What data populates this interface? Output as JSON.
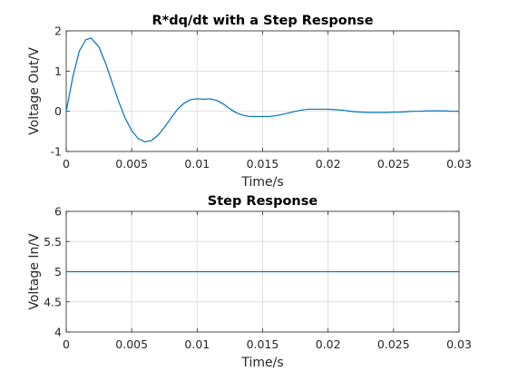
{
  "chart_data": [
    {
      "type": "line",
      "title": "R*dq/dt with a Step Response",
      "xlabel": "Time/s",
      "ylabel": "Voltage Out/V",
      "xlim": [
        0,
        0.03
      ],
      "ylim": [
        -1,
        2
      ],
      "xticks": [
        "0",
        "0.005",
        "0.01",
        "0.015",
        "0.02",
        "0.025",
        "0.03"
      ],
      "yticks": [
        "-1",
        "0",
        "1",
        "2"
      ],
      "grid": true,
      "color": "#0072bd",
      "series": [
        {
          "x": [
            0,
            0.0005,
            0.001,
            0.0015,
            0.0019,
            0.0025,
            0.003,
            0.0035,
            0.004,
            0.0045,
            0.005,
            0.0055,
            0.006,
            0.0065,
            0.007,
            0.0075,
            0.008,
            0.0085,
            0.009,
            0.0095,
            0.01,
            0.0105,
            0.011,
            0.0115,
            0.012,
            0.0125,
            0.013,
            0.0135,
            0.014,
            0.0145,
            0.015,
            0.0155,
            0.016,
            0.0165,
            0.017,
            0.0175,
            0.018,
            0.0185,
            0.019,
            0.0195,
            0.02,
            0.0205,
            0.021,
            0.0215,
            0.022,
            0.0225,
            0.023,
            0.0235,
            0.024,
            0.0245,
            0.025,
            0.0255,
            0.026,
            0.0265,
            0.027,
            0.0275,
            0.028,
            0.0285,
            0.029,
            0.0295,
            0.03
          ],
          "y": [
            0,
            0.85,
            1.5,
            1.78,
            1.82,
            1.6,
            1.2,
            0.72,
            0.25,
            -0.17,
            -0.48,
            -0.68,
            -0.76,
            -0.73,
            -0.6,
            -0.4,
            -0.17,
            0.05,
            0.2,
            0.29,
            0.31,
            0.3,
            0.31,
            0.27,
            0.18,
            0.06,
            -0.04,
            -0.1,
            -0.13,
            -0.13,
            -0.13,
            -0.13,
            -0.11,
            -0.08,
            -0.04,
            0.0,
            0.03,
            0.05,
            0.05,
            0.05,
            0.05,
            0.04,
            0.03,
            0.01,
            -0.01,
            -0.02,
            -0.03,
            -0.03,
            -0.03,
            -0.03,
            -0.02,
            -0.02,
            -0.01,
            0.0,
            0.0,
            0.01,
            0.01,
            0.01,
            0.01,
            0.0,
            0.0
          ]
        }
      ]
    },
    {
      "type": "line",
      "title": "Step Response",
      "xlabel": "Time/s",
      "ylabel": "Voltage In/V",
      "xlim": [
        0,
        0.03
      ],
      "ylim": [
        4,
        6
      ],
      "xticks": [
        "0",
        "0.005",
        "0.01",
        "0.015",
        "0.02",
        "0.025",
        "0.03"
      ],
      "yticks": [
        "4",
        "4.5",
        "5",
        "5.5",
        "6"
      ],
      "grid": true,
      "color": "#0072bd",
      "series": [
        {
          "x": [
            0,
            0.03
          ],
          "y": [
            5,
            5
          ]
        }
      ]
    }
  ]
}
